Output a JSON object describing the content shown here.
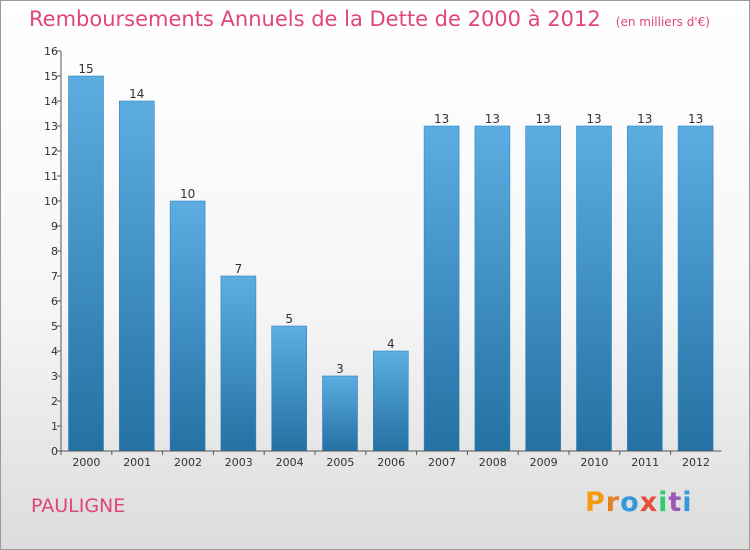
{
  "title": "Remboursements Annuels de la Dette de 2000 à 2012",
  "subtitle": "(en milliers d'€)",
  "commune": "PAULIGNE",
  "logo": {
    "letters": [
      "P",
      "r",
      "o",
      "x",
      "i",
      "t",
      "i"
    ],
    "colors": [
      "#f39c12",
      "#e67e22",
      "#3498db",
      "#e74c3c",
      "#2ecc71",
      "#9b59b6",
      "#3498db"
    ]
  },
  "colors": {
    "accent": "#e0457b",
    "bar_light": "#5dade2",
    "bar_dark": "#2471a3"
  },
  "chart_data": {
    "type": "bar",
    "categories": [
      "2000",
      "2001",
      "2002",
      "2003",
      "2004",
      "2005",
      "2006",
      "2007",
      "2008",
      "2009",
      "2010",
      "2011",
      "2012"
    ],
    "values": [
      15,
      14,
      10,
      7,
      5,
      3,
      4,
      13,
      13,
      13,
      13,
      13,
      13
    ],
    "data_labels": true,
    "ylim": [
      0,
      16
    ],
    "yticks": [
      0,
      1,
      2,
      3,
      4,
      5,
      6,
      7,
      8,
      9,
      10,
      11,
      12,
      13,
      14,
      15,
      16
    ],
    "grid": false,
    "title": "Remboursements Annuels de la Dette de 2000 à 2012",
    "subtitle": "(en milliers d'€)"
  }
}
